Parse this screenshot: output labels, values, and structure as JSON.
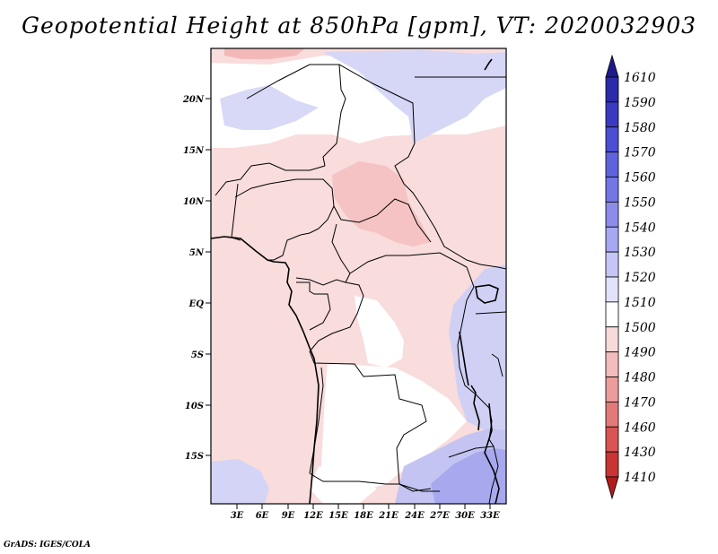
{
  "title": "Geopotential Height at 850hPa [gpm], VT: 2020032903",
  "footer": "GrADS: IGES/COLA",
  "map": {
    "lat_labels": [
      "20N",
      "15N",
      "10N",
      "5N",
      "EQ",
      "5S",
      "10S",
      "15S"
    ],
    "lon_labels": [
      "3E",
      "6E",
      "9E",
      "12E",
      "15E",
      "18E",
      "21E",
      "24E",
      "27E",
      "30E",
      "33E"
    ]
  },
  "colorbar": {
    "labels": [
      "1610",
      "1590",
      "1580",
      "1570",
      "1560",
      "1550",
      "1540",
      "1530",
      "1520",
      "1510",
      "1500",
      "1490",
      "1480",
      "1470",
      "1460",
      "1430",
      "1410"
    ],
    "colors": [
      "#1e1a8c",
      "#2b2aa8",
      "#3a3ac0",
      "#4b4fd2",
      "#5e63dc",
      "#7376e4",
      "#8c8ceb",
      "#a7a8f1",
      "#c5c5f6",
      "#e2e2fb",
      "#ffffff",
      "#f9dada",
      "#f3bcbc",
      "#eb9c9c",
      "#e27a7a",
      "#d85454",
      "#c93434",
      "#b01c1c"
    ]
  }
}
